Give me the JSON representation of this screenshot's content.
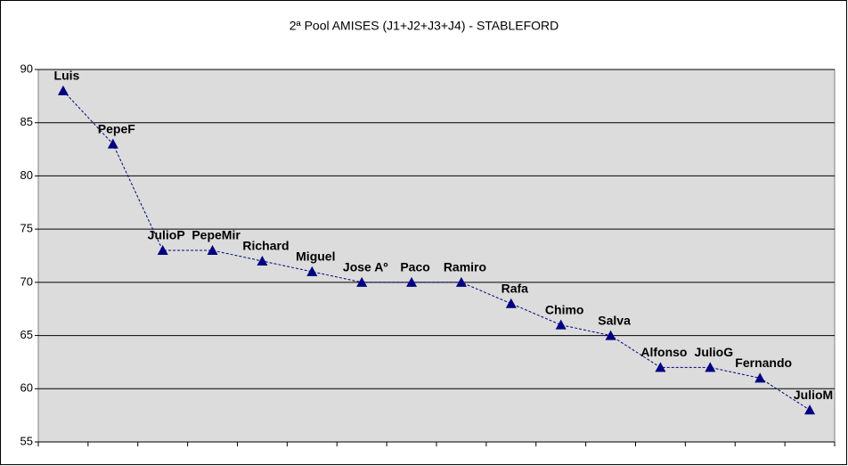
{
  "chart_data": {
    "type": "line",
    "title": "2ª Pool AMISES (J1+J2+J3+J4) - STABLEFORD",
    "categories": [
      "Luis",
      "PepeF",
      "JulioP",
      "PepeMir",
      "Richard",
      "Miguel",
      "Jose Aº",
      "Paco",
      "Ramiro",
      "Rafa",
      "Chimo",
      "Salva",
      "Alfonso",
      "JulioG",
      "Fernando",
      "JulioM"
    ],
    "values": [
      88,
      83,
      73,
      73,
      72,
      71,
      70,
      70,
      70,
      68,
      66,
      65,
      62,
      62,
      61,
      58
    ],
    "color": "#000080",
    "ylim": [
      55,
      90
    ],
    "yticks": [
      55,
      60,
      65,
      70,
      75,
      80,
      85,
      90
    ],
    "grid": true
  }
}
